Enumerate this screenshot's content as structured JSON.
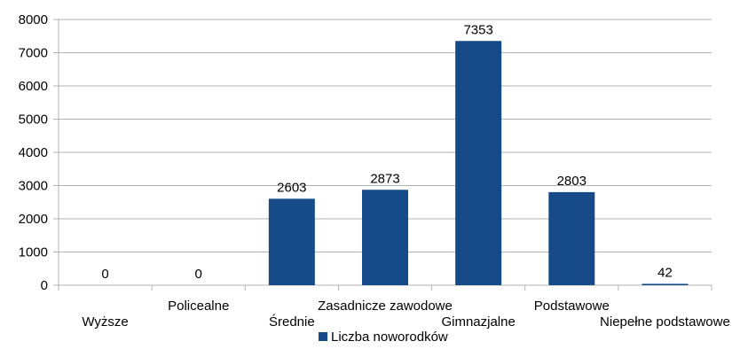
{
  "chart_data": {
    "type": "bar",
    "categories": [
      "Wyższe",
      "Policealne",
      "Średnie",
      "Zasadnicze zawodowe",
      "Gimnazjalne",
      "Podstawowe",
      "Niepełne podstawowe"
    ],
    "series": [
      {
        "name": "Liczba noworodków",
        "values": [
          0,
          0,
          2603,
          2873,
          7353,
          2803,
          42
        ]
      }
    ],
    "data_labels": [
      "0",
      "0",
      "2603",
      "2873",
      "7353",
      "2803",
      "42"
    ],
    "ylim": [
      0,
      8000
    ],
    "yticks": [
      0,
      1000,
      2000,
      3000,
      4000,
      5000,
      6000,
      7000,
      8000
    ],
    "grid": true,
    "legend_position": "bottom",
    "colors": {
      "bar": "#174A88",
      "grid": "#b3b3b3",
      "axis": "#b3b3b3"
    }
  }
}
